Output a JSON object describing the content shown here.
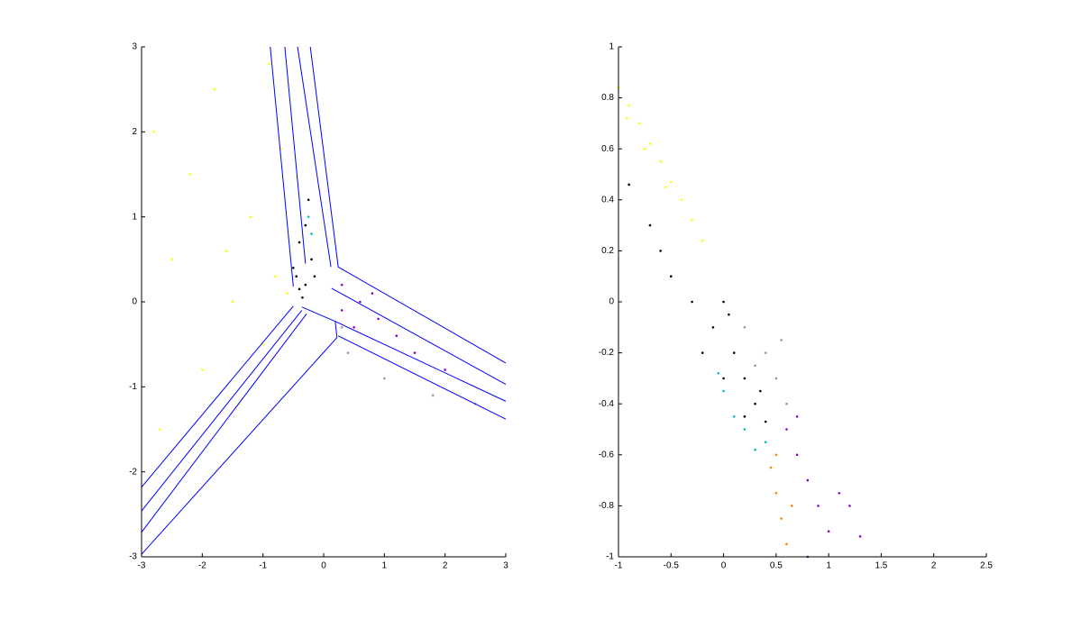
{
  "chart_data": [
    {
      "type": "scatter",
      "xlim": [
        -3,
        3
      ],
      "ylim": [
        -3,
        3
      ],
      "xticks": [
        -3,
        -2,
        -1,
        0,
        1,
        2,
        3
      ],
      "yticks": [
        -3,
        -2,
        -1,
        0,
        1,
        2,
        3
      ],
      "series": [
        {
          "color": "#ffff00",
          "style": "dots",
          "x": [
            -2.5,
            -2.2,
            -1.8,
            -1.5,
            -1.2,
            -1.0,
            -0.8,
            -0.7,
            -2.0,
            -2.7,
            -1.4,
            -0.6,
            -0.9,
            -2.8,
            -1.6
          ],
          "y": [
            0.5,
            1.5,
            2.5,
            0.0,
            1.0,
            -0.5,
            0.3,
            1.8,
            -0.8,
            -1.5,
            -1.2,
            0.1,
            2.8,
            2.0,
            0.6
          ]
        },
        {
          "color": "#000000",
          "style": "dots",
          "x": [
            -0.4,
            -0.3,
            -0.35,
            -0.45,
            -0.2,
            -0.3,
            -0.25,
            -0.4,
            -0.5,
            -0.15
          ],
          "y": [
            0.15,
            0.2,
            0.05,
            0.3,
            0.5,
            0.9,
            1.2,
            0.7,
            0.4,
            0.3
          ]
        },
        {
          "color": "#8b00c8",
          "style": "dots",
          "x": [
            0.3,
            0.6,
            0.9,
            1.2,
            0.5,
            1.5,
            2.0,
            0.8,
            0.3
          ],
          "y": [
            0.2,
            0.0,
            -0.2,
            -0.4,
            -0.3,
            -0.6,
            -0.8,
            0.1,
            -0.1
          ]
        },
        {
          "color": "#999999",
          "style": "dots",
          "x": [
            0.4,
            1.0,
            1.8,
            2.5,
            0.3
          ],
          "y": [
            -0.6,
            -0.9,
            -1.1,
            -1.2,
            -0.3
          ]
        },
        {
          "color": "#00bfbf",
          "style": "dots",
          "x": [
            -0.25,
            -0.2
          ],
          "y": [
            1.0,
            0.8
          ]
        },
        {
          "color": "#0000ff",
          "style": "line",
          "x": [
            -0.88,
            -0.5
          ],
          "y": [
            3,
            0.18
          ]
        },
        {
          "color": "#0000ff",
          "style": "line",
          "x": [
            -0.64,
            -0.3
          ],
          "y": [
            3,
            0.45
          ]
        },
        {
          "color": "#0000ff",
          "style": "line",
          "x": [
            -0.43,
            0.12
          ],
          "y": [
            3,
            0.41
          ]
        },
        {
          "color": "#0000ff",
          "style": "line",
          "x": [
            -0.22,
            0.24,
            3
          ],
          "y": [
            3,
            0.41,
            -0.72
          ]
        },
        {
          "color": "#0000ff",
          "style": "line",
          "x": [
            0.13,
            3
          ],
          "y": [
            0.16,
            -0.97
          ]
        },
        {
          "color": "#0000ff",
          "style": "line",
          "x": [
            0.19,
            3
          ],
          "y": [
            -0.23,
            -1.17
          ]
        },
        {
          "color": "#0000ff",
          "style": "line",
          "x": [
            0.24,
            3
          ],
          "y": [
            -0.4,
            -1.38
          ]
        },
        {
          "color": "#0000ff",
          "style": "line",
          "x": [
            -3,
            -0.5
          ],
          "y": [
            -2.18,
            -0.05
          ]
        },
        {
          "color": "#0000ff",
          "style": "line",
          "x": [
            -3,
            -0.36
          ],
          "y": [
            -2.46,
            -0.1
          ]
        },
        {
          "color": "#0000ff",
          "style": "line",
          "x": [
            -3,
            -0.28
          ],
          "y": [
            -2.71,
            -0.14
          ]
        },
        {
          "color": "#0000ff",
          "style": "line",
          "x": [
            -3,
            0.22,
            0.19,
            -0.36
          ],
          "y": [
            -2.97,
            -0.42,
            -0.23,
            -0.06
          ]
        }
      ]
    },
    {
      "type": "scatter",
      "xlim": [
        -1,
        2.5
      ],
      "ylim": [
        -1,
        1
      ],
      "xticks": [
        -1,
        -0.5,
        0,
        0.5,
        1,
        1.5,
        2,
        2.5
      ],
      "yticks": [
        -1,
        -0.8,
        -0.6,
        -0.4,
        -0.2,
        0,
        0.2,
        0.4,
        0.6,
        0.8,
        1
      ],
      "series": [
        {
          "color": "#ffff00",
          "style": "dots",
          "x": [
            -1,
            -0.9,
            -0.8,
            -0.7,
            -0.6,
            -0.5,
            -0.4,
            -0.3,
            -0.2,
            -0.92,
            -0.75,
            -0.55
          ],
          "y": [
            0.84,
            0.77,
            0.7,
            0.62,
            0.55,
            0.47,
            0.4,
            0.32,
            0.24,
            0.72,
            0.6,
            0.45
          ]
        },
        {
          "color": "#000000",
          "style": "dots",
          "x": [
            -0.9,
            -0.7,
            -0.6,
            -0.5,
            -0.3,
            -0.1,
            0,
            0.05,
            0.1,
            0.2,
            0.3,
            0.4,
            0.35,
            -0.2,
            0,
            0.2
          ],
          "y": [
            0.46,
            0.3,
            0.2,
            0.1,
            0.0,
            -0.1,
            0.0,
            -0.05,
            -0.2,
            -0.3,
            -0.4,
            -0.47,
            -0.35,
            -0.2,
            -0.3,
            -0.45
          ]
        },
        {
          "color": "#999999",
          "style": "dots",
          "x": [
            0.2,
            0.4,
            0.5,
            0.6,
            0.3,
            0.55
          ],
          "y": [
            -0.1,
            -0.2,
            -0.3,
            -0.4,
            -0.25,
            -0.15
          ]
        },
        {
          "color": "#00bfbf",
          "style": "dots",
          "x": [
            0,
            0.1,
            0.2,
            0.3,
            0.4,
            -0.05
          ],
          "y": [
            -0.35,
            -0.45,
            -0.5,
            -0.58,
            -0.55,
            -0.28
          ]
        },
        {
          "color": "#8b00c8",
          "style": "dots",
          "x": [
            0.6,
            0.7,
            0.8,
            0.9,
            1.0,
            1.1,
            1.2,
            1.3,
            0.8,
            0.7
          ],
          "y": [
            -0.5,
            -0.6,
            -0.7,
            -0.8,
            -0.9,
            -0.75,
            -0.8,
            -0.92,
            -1.0,
            -0.45
          ]
        },
        {
          "color": "#ff8000",
          "style": "dots",
          "x": [
            0.45,
            0.5,
            0.55,
            0.6,
            0.65,
            0.5
          ],
          "y": [
            -0.65,
            -0.75,
            -0.85,
            -0.95,
            -0.8,
            -0.6
          ]
        }
      ]
    }
  ]
}
